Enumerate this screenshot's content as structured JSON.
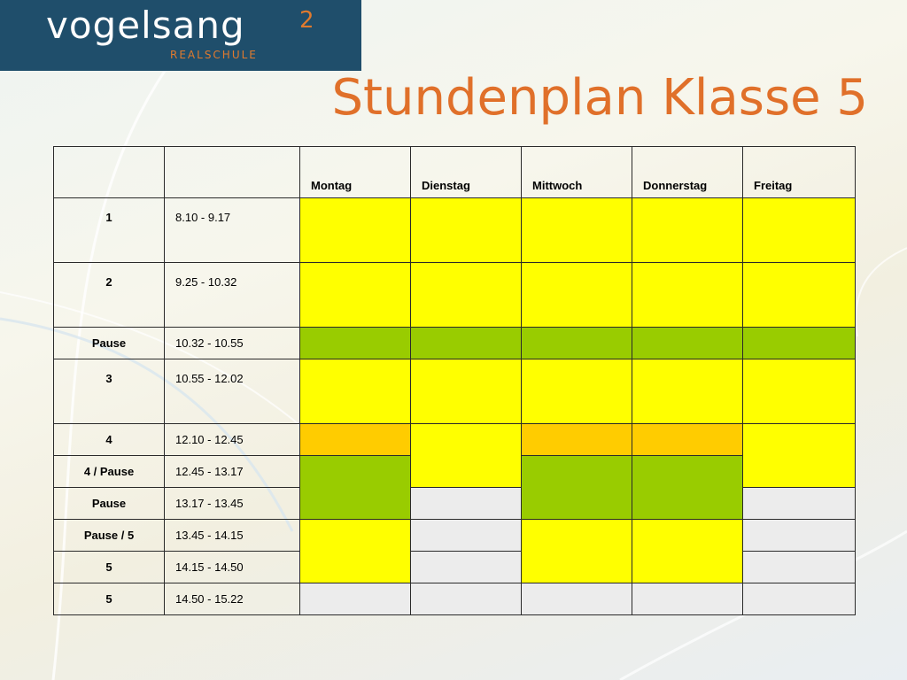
{
  "logo": {
    "word": "vogelsang",
    "sup": "2",
    "sub": "REALSCHULE"
  },
  "title": "Stundenplan Klasse 5",
  "table": {
    "days": [
      "Montag",
      "Dienstag",
      "Mittwoch",
      "Donnerstag",
      "Freitag"
    ],
    "rows": [
      {
        "period": "1",
        "time": "8.10 - 9.17"
      },
      {
        "period": "2",
        "time": "9.25 - 10.32"
      },
      {
        "period": "Pause",
        "time": "10.32 - 10.55"
      },
      {
        "period": "3",
        "time": "10.55 - 12.02"
      },
      {
        "period": "4",
        "time": "12.10 - 12.45"
      },
      {
        "period": "4 / Pause",
        "time": "12.45 - 13.17"
      },
      {
        "period": "Pause",
        "time": "13.17 - 13.45"
      },
      {
        "period": "Pause / 5",
        "time": "13.45 - 14.15"
      },
      {
        "period": "5",
        "time": "14.15 - 14.50"
      },
      {
        "period": "5",
        "time": "14.50 - 15.22"
      }
    ]
  },
  "colors": {
    "lesson": "#ffff00",
    "break": "#99cc00",
    "short_lesson": "#ffcc00",
    "free": "#ececec",
    "title": "#e0702a",
    "logo_bg": "#1f4e6b"
  }
}
